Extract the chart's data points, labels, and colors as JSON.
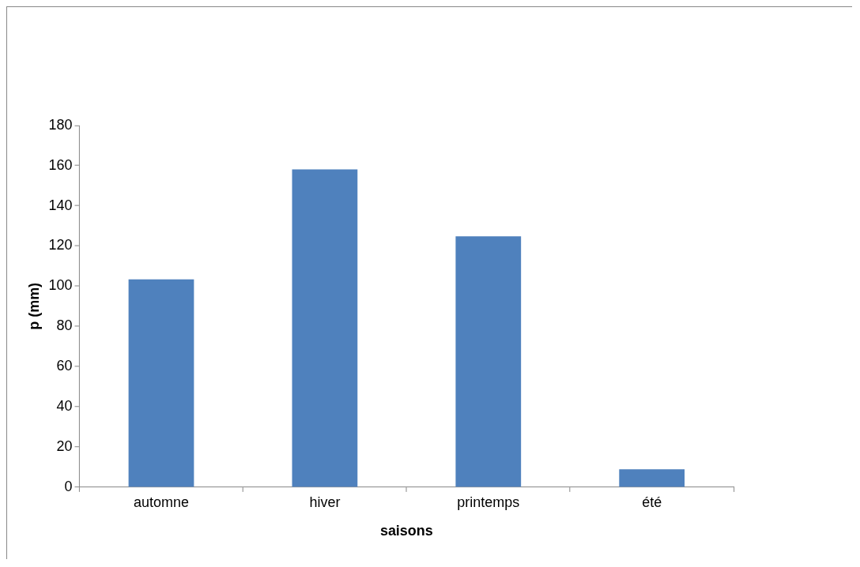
{
  "chart_data": {
    "type": "bar",
    "xlabel": "saisons",
    "ylabel": "p (mm)",
    "categories": [
      "automne",
      "hiver",
      "printemps",
      "été"
    ],
    "values": [
      103.4,
      158.1,
      124.8,
      8.9
    ],
    "color": "#4f81bd",
    "ylim": [
      0,
      180
    ],
    "yticks": [
      0,
      20,
      40,
      60,
      80,
      100,
      120,
      140,
      160,
      180
    ],
    "grid": false,
    "legend": false
  }
}
